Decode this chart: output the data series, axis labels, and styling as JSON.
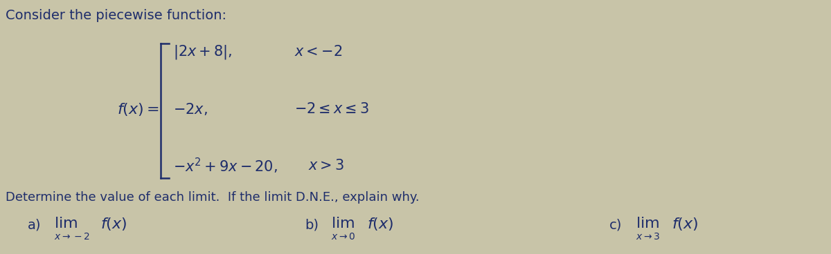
{
  "bg_color": "#c8c4a8",
  "text_color": "#1e2d6b",
  "title": "Consider the piecewise function:",
  "title_fontsize": 14,
  "body_fontsize": 13,
  "math_fontsize": 14,
  "small_fontsize": 9,
  "piece1_expr": "$|2x+8|,$",
  "piece1_cond": "$x < -2$",
  "piece2_expr": "$-2x,$",
  "piece2_cond": "$-2 \\leq x \\leq 3$",
  "piece3_expr": "$-x^2+9x-20,$",
  "piece3_cond": "$x > 3$",
  "fx_label": "$f(x)=$",
  "determine_text": "Determine the value of each limit.  If the limit D.N.E., explain why.",
  "lim_a_label": "a)",
  "lim_a_sub": "$x\\rightarrow -2$",
  "lim_b_label": "b)",
  "lim_b_sub": "$x\\rightarrow 0$",
  "lim_c_label": "c)",
  "lim_c_sub": "$x\\rightarrow 3$",
  "lim_func": "$f(x)$",
  "lim_text": "$\\lim$"
}
